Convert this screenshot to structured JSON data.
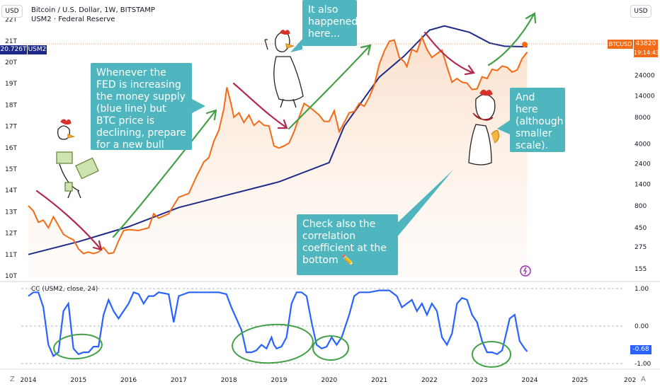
{
  "header": {
    "title": "Bitcoin / U.S. Dollar, 1W, BITSTAMP",
    "subtitle": "USM2 · Federal Reserve",
    "currency_left": "USD",
    "currency_right": "USD"
  },
  "badges": {
    "left_value": "20.726T",
    "left_symbol": "USM2",
    "right_symbol": "BTCUSD",
    "right_price": "43820",
    "right_countdown": "19:14:43"
  },
  "callouts": {
    "fed": "Whenever the FED is increasing the money supply (blue line) but BTC price is declining, prepare for a new bull cycle.",
    "also": "It also happened here...",
    "here": "And here (although smaller scale).",
    "check": "Check also the correlation coefficient at the bottom ✏️"
  },
  "indicator": {
    "title": "CC (USM2, close, 24)",
    "value_badge": "-0.68"
  },
  "corner": {
    "left": "Z",
    "right": "A"
  },
  "colors": {
    "btc": "#f36b16",
    "m2": "#1e2a8a",
    "cc": "#2962ff",
    "green": "#43a047",
    "red": "#b22a4b",
    "callout": "#4fb5bf",
    "badge_m2": "#1e2a8a",
    "badge_btc": "#f36b16"
  },
  "chart_data": [
    {
      "type": "line",
      "title": "Bitcoin / U.S. Dollar, 1W, BITSTAMP",
      "x_axis": {
        "ticks": [
          "2014",
          "2015",
          "2016",
          "2017",
          "2018",
          "2019",
          "2020",
          "2021",
          "2022",
          "2023",
          "2024",
          "2025",
          "202"
        ]
      },
      "y_left": {
        "ticks": [
          "10T",
          "11T",
          "12T",
          "13T",
          "14T",
          "15T",
          "16T",
          "17T",
          "18T",
          "19T",
          "20T",
          "21T",
          "22T"
        ],
        "range": [
          10,
          22
        ],
        "unit": "T"
      },
      "y_right": {
        "scale": "log",
        "ticks": [
          "155",
          "275",
          "450",
          "800",
          "1400",
          "2400",
          "4000",
          "8000",
          "14000",
          "24000"
        ]
      },
      "series": [
        {
          "name": "BTCUSD",
          "color": "#f36b16",
          "axis": "right",
          "points": [
            [
              2014.0,
              800
            ],
            [
              2014.1,
              700
            ],
            [
              2014.2,
              520
            ],
            [
              2014.3,
              550
            ],
            [
              2014.4,
              450
            ],
            [
              2014.5,
              600
            ],
            [
              2014.6,
              480
            ],
            [
              2014.7,
              380
            ],
            [
              2014.8,
              350
            ],
            [
              2014.9,
              330
            ],
            [
              2015.0,
              260
            ],
            [
              2015.1,
              230
            ],
            [
              2015.2,
              240
            ],
            [
              2015.3,
              230
            ],
            [
              2015.4,
              240
            ],
            [
              2015.5,
              270
            ],
            [
              2015.6,
              230
            ],
            [
              2015.7,
              235
            ],
            [
              2015.8,
              320
            ],
            [
              2015.9,
              420
            ],
            [
              2016.0,
              430
            ],
            [
              2016.2,
              420
            ],
            [
              2016.4,
              450
            ],
            [
              2016.5,
              650
            ],
            [
              2016.6,
              580
            ],
            [
              2016.8,
              650
            ],
            [
              2016.95,
              900
            ],
            [
              2017.0,
              1000
            ],
            [
              2017.2,
              1100
            ],
            [
              2017.35,
              1700
            ],
            [
              2017.5,
              2500
            ],
            [
              2017.6,
              2800
            ],
            [
              2017.7,
              4300
            ],
            [
              2017.8,
              5700
            ],
            [
              2017.9,
              10000
            ],
            [
              2017.96,
              17500
            ],
            [
              2018.05,
              11000
            ],
            [
              2018.1,
              8000
            ],
            [
              2018.2,
              9000
            ],
            [
              2018.3,
              7000
            ],
            [
              2018.4,
              8500
            ],
            [
              2018.5,
              6500
            ],
            [
              2018.6,
              7300
            ],
            [
              2018.7,
              6500
            ],
            [
              2018.8,
              6400
            ],
            [
              2018.9,
              3800
            ],
            [
              2019.0,
              3600
            ],
            [
              2019.1,
              3800
            ],
            [
              2019.2,
              4100
            ],
            [
              2019.3,
              5500
            ],
            [
              2019.4,
              8000
            ],
            [
              2019.5,
              11500
            ],
            [
              2019.6,
              10500
            ],
            [
              2019.7,
              9500
            ],
            [
              2019.8,
              8500
            ],
            [
              2019.9,
              7200
            ],
            [
              2020.0,
              7200
            ],
            [
              2020.1,
              9500
            ],
            [
              2020.2,
              5500
            ],
            [
              2020.3,
              7000
            ],
            [
              2020.4,
              9000
            ],
            [
              2020.5,
              9300
            ],
            [
              2020.6,
              11500
            ],
            [
              2020.7,
              10700
            ],
            [
              2020.8,
              13500
            ],
            [
              2020.9,
              18500
            ],
            [
              2021.0,
              32000
            ],
            [
              2021.1,
              45000
            ],
            [
              2021.2,
              58000
            ],
            [
              2021.3,
              60000
            ],
            [
              2021.4,
              38000
            ],
            [
              2021.5,
              34000
            ],
            [
              2021.55,
              30000
            ],
            [
              2021.65,
              47000
            ],
            [
              2021.75,
              44000
            ],
            [
              2021.85,
              65000
            ],
            [
              2021.95,
              47000
            ],
            [
              2022.05,
              38000
            ],
            [
              2022.15,
              42000
            ],
            [
              2022.25,
              46000
            ],
            [
              2022.35,
              30000
            ],
            [
              2022.45,
              20000
            ],
            [
              2022.55,
              22000
            ],
            [
              2022.65,
              20000
            ],
            [
              2022.75,
              19500
            ],
            [
              2022.85,
              16500
            ],
            [
              2022.95,
              16800
            ],
            [
              2023.05,
              23000
            ],
            [
              2023.15,
              22000
            ],
            [
              2023.25,
              28000
            ],
            [
              2023.35,
              27000
            ],
            [
              2023.45,
              30500
            ],
            [
              2023.55,
              29500
            ],
            [
              2023.65,
              26000
            ],
            [
              2023.75,
              27500
            ],
            [
              2023.85,
              37000
            ],
            [
              2023.95,
              43820
            ]
          ]
        },
        {
          "name": "USM2",
          "color": "#1e2a8a",
          "axis": "left",
          "points": [
            [
              2014.0,
              11.0
            ],
            [
              2015.0,
              11.6
            ],
            [
              2016.0,
              12.3
            ],
            [
              2017.0,
              13.2
            ],
            [
              2018.0,
              13.8
            ],
            [
              2019.0,
              14.4
            ],
            [
              2020.0,
              15.3
            ],
            [
              2020.3,
              17.0
            ],
            [
              2021.0,
              19.3
            ],
            [
              2021.5,
              20.3
            ],
            [
              2022.0,
              21.5
            ],
            [
              2022.3,
              21.7
            ],
            [
              2022.8,
              21.4
            ],
            [
              2023.2,
              20.9
            ],
            [
              2023.5,
              20.75
            ],
            [
              2023.95,
              20.726
            ]
          ]
        }
      ]
    },
    {
      "type": "line",
      "title": "CC (USM2, close, 24)",
      "y_axis": {
        "ticks": [
          "1.00",
          "0.00",
          "-1.00"
        ],
        "range": [
          -1,
          1
        ]
      },
      "series": [
        {
          "name": "CC (USM2, close, 24)",
          "color": "#2962ff",
          "points": [
            [
              2014.0,
              0.8
            ],
            [
              2014.1,
              0.9
            ],
            [
              2014.2,
              0.9
            ],
            [
              2014.3,
              0.5
            ],
            [
              2014.4,
              -0.5
            ],
            [
              2014.5,
              -0.8
            ],
            [
              2014.6,
              -0.7
            ],
            [
              2014.7,
              0.4
            ],
            [
              2014.8,
              0.6
            ],
            [
              2014.9,
              -0.6
            ],
            [
              2015.0,
              -0.75
            ],
            [
              2015.1,
              -0.7
            ],
            [
              2015.2,
              -0.7
            ],
            [
              2015.3,
              -0.55
            ],
            [
              2015.4,
              -0.55
            ],
            [
              2015.5,
              0.3
            ],
            [
              2015.6,
              0.7
            ],
            [
              2015.7,
              0.4
            ],
            [
              2015.8,
              0.2
            ],
            [
              2016.0,
              0.6
            ],
            [
              2016.1,
              0.9
            ],
            [
              2016.2,
              0.85
            ],
            [
              2016.3,
              0.6
            ],
            [
              2016.4,
              0.8
            ],
            [
              2016.5,
              0.8
            ],
            [
              2016.6,
              0.9
            ],
            [
              2016.8,
              0.85
            ],
            [
              2016.9,
              0.1
            ],
            [
              2017.0,
              0.8
            ],
            [
              2017.2,
              0.9
            ],
            [
              2017.4,
              0.9
            ],
            [
              2017.6,
              0.9
            ],
            [
              2017.8,
              0.9
            ],
            [
              2017.95,
              0.85
            ],
            [
              2018.05,
              0.5
            ],
            [
              2018.15,
              0.2
            ],
            [
              2018.25,
              -0.1
            ],
            [
              2018.35,
              -0.7
            ],
            [
              2018.45,
              -0.7
            ],
            [
              2018.55,
              -0.65
            ],
            [
              2018.65,
              -0.5
            ],
            [
              2018.75,
              -0.6
            ],
            [
              2018.85,
              -0.3
            ],
            [
              2018.9,
              -0.5
            ],
            [
              2018.95,
              -0.6
            ],
            [
              2019.05,
              -0.55
            ],
            [
              2019.15,
              -0.3
            ],
            [
              2019.25,
              0.6
            ],
            [
              2019.35,
              0.9
            ],
            [
              2019.45,
              0.9
            ],
            [
              2019.55,
              0.8
            ],
            [
              2019.65,
              0.1
            ],
            [
              2019.75,
              -0.5
            ],
            [
              2019.85,
              -0.6
            ],
            [
              2019.95,
              -0.55
            ],
            [
              2020.05,
              -0.3
            ],
            [
              2020.15,
              -0.5
            ],
            [
              2020.25,
              -0.3
            ],
            [
              2020.4,
              0.3
            ],
            [
              2020.5,
              0.8
            ],
            [
              2020.6,
              0.9
            ],
            [
              2020.8,
              0.9
            ],
            [
              2021.0,
              0.95
            ],
            [
              2021.2,
              0.95
            ],
            [
              2021.35,
              0.8
            ],
            [
              2021.45,
              0.5
            ],
            [
              2021.55,
              0.6
            ],
            [
              2021.65,
              0.7
            ],
            [
              2021.75,
              0.4
            ],
            [
              2021.85,
              0.6
            ],
            [
              2021.95,
              0.3
            ],
            [
              2022.05,
              0.6
            ],
            [
              2022.15,
              0.4
            ],
            [
              2022.25,
              -0.3
            ],
            [
              2022.35,
              -0.5
            ],
            [
              2022.45,
              -0.2
            ],
            [
              2022.55,
              0.6
            ],
            [
              2022.65,
              0.75
            ],
            [
              2022.75,
              0.7
            ],
            [
              2022.85,
              0.3
            ],
            [
              2022.95,
              0.1
            ],
            [
              2023.05,
              -0.4
            ],
            [
              2023.15,
              -0.7
            ],
            [
              2023.25,
              -0.7
            ],
            [
              2023.35,
              -0.75
            ],
            [
              2023.45,
              -0.65
            ],
            [
              2023.55,
              -0.1
            ],
            [
              2023.6,
              0.2
            ],
            [
              2023.7,
              0.3
            ],
            [
              2023.8,
              -0.4
            ],
            [
              2023.9,
              -0.6
            ],
            [
              2023.95,
              -0.68
            ]
          ]
        }
      ]
    }
  ]
}
